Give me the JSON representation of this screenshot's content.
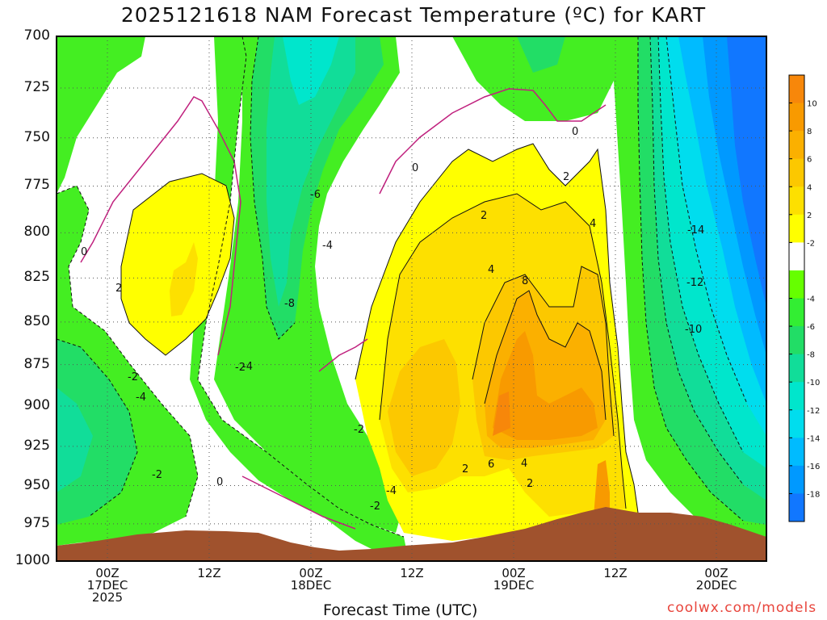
{
  "chart_data": {
    "type": "heatmap",
    "title": "2025121618 NAM Forecast Temperature (ºC) for KART",
    "xlabel": "Forecast Time (UTC)",
    "ylabel": "",
    "y_ticks": [
      "700",
      "725",
      "750",
      "775",
      "800",
      "825",
      "850",
      "875",
      "900",
      "925",
      "950",
      "975",
      "1000"
    ],
    "x_ticks": [
      {
        "l1": "00Z",
        "l2": "17DEC",
        "l3": "2025"
      },
      {
        "l1": "12Z",
        "l2": "",
        "l3": ""
      },
      {
        "l1": "00Z",
        "l2": "18DEC",
        "l3": ""
      },
      {
        "l1": "12Z",
        "l2": "",
        "l3": ""
      },
      {
        "l1": "00Z",
        "l2": "19DEC",
        "l3": ""
      },
      {
        "l1": "12Z",
        "l2": "",
        "l3": ""
      },
      {
        "l1": "00Z",
        "l2": "20DEC",
        "l3": ""
      }
    ],
    "ylim": [
      1000,
      700
    ],
    "y_scale": "log-pressure",
    "grid": true,
    "colorbar": {
      "ticks": [
        "10",
        "8",
        "6",
        "4",
        "2",
        "-2",
        "-4",
        "-6",
        "-8",
        "-10",
        "-12",
        "-14",
        "-16",
        "-18"
      ],
      "bands": [
        {
          "range": "10 to 12",
          "color": "#f7870a"
        },
        {
          "range": "8 to 10",
          "color": "#f89a00"
        },
        {
          "range": "6 to 8",
          "color": "#fbb000"
        },
        {
          "range": "4 to 6",
          "color": "#fcc800"
        },
        {
          "range": "2 to 4",
          "color": "#fde000"
        },
        {
          "range": "0 to 2",
          "color": "#ffff00"
        },
        {
          "range": "-2 to 2",
          "color": "#ffffff"
        },
        {
          "range": "-4 to -2",
          "color": "#66ff00"
        },
        {
          "range": "-6 to -4",
          "color": "#33ee33"
        },
        {
          "range": "-8 to -6",
          "color": "#22dd66"
        },
        {
          "range": "-10 to -8",
          "color": "#11dd99"
        },
        {
          "range": "-12 to -10",
          "color": "#00e6cc"
        },
        {
          "range": "-14 to -12",
          "color": "#00ddee"
        },
        {
          "range": "-16 to -14",
          "color": "#00bbff"
        },
        {
          "range": "-18 to -16",
          "color": "#0099ff"
        },
        {
          "range": "< -18",
          "color": "#1177ff"
        }
      ]
    },
    "contour_labels": [
      "0",
      "0",
      "0",
      "0",
      "2",
      "2",
      "2",
      "2",
      "2",
      "4",
      "4",
      "4",
      "6",
      "8",
      "-2",
      "-2",
      "-2",
      "-2",
      "-2",
      "-4",
      "-4",
      "-4",
      "-4",
      "-6",
      "-8",
      "-10",
      "-12",
      "-14"
    ],
    "terrain_color": "#a0522d"
  },
  "credit": "coolwx.com/models"
}
